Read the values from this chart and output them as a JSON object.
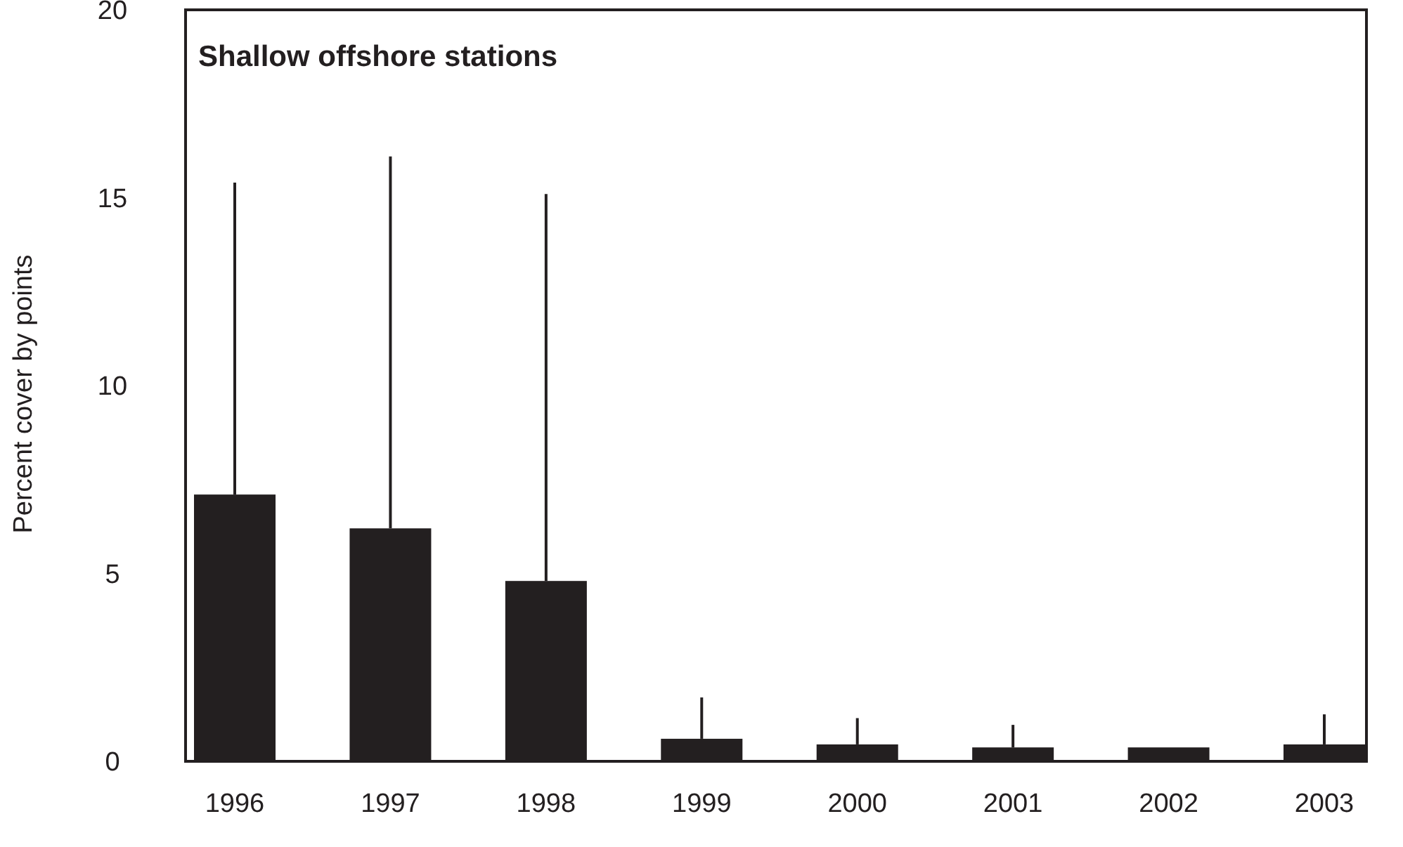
{
  "chart_data": {
    "type": "bar",
    "title": "Shallow offshore stations",
    "ylabel": "Percent cover by points",
    "categories": [
      "1996",
      "1997",
      "1998",
      "1999",
      "2000",
      "2001",
      "2002",
      "2003"
    ],
    "values": [
      7.1,
      6.2,
      4.8,
      0.6,
      0.45,
      0.37,
      0.37,
      0.45
    ],
    "errors": [
      [
        7.1,
        15.4
      ],
      [
        6.2,
        16.1
      ],
      [
        4.8,
        15.1
      ],
      [
        0.6,
        1.7
      ],
      [
        0.45,
        1.15
      ],
      [
        0.37,
        0.97
      ],
      null,
      [
        0.45,
        1.25
      ]
    ],
    "color": "#231f20",
    "ylim": [
      0,
      20
    ],
    "yticks": [
      0,
      5,
      10,
      15,
      20
    ]
  }
}
